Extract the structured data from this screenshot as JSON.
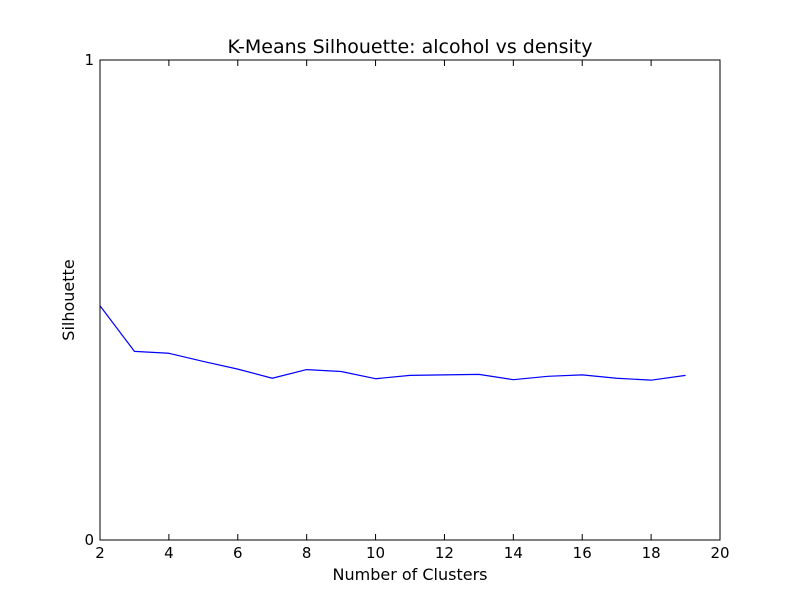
{
  "chart_data": {
    "type": "line",
    "title": "K-Means Silhouette: alcohol vs density",
    "xlabel": "Number of Clusters",
    "ylabel": "Silhouette",
    "xlim": [
      2,
      20
    ],
    "ylim": [
      0,
      1
    ],
    "xticks": [
      "2",
      "4",
      "6",
      "8",
      "10",
      "12",
      "14",
      "16",
      "18",
      "20"
    ],
    "yticks": [
      "0",
      "1"
    ],
    "grid": false,
    "legend": "none",
    "line_color": "#0000ff",
    "series": [
      {
        "x": [
          2,
          3,
          4,
          5,
          6,
          7,
          8,
          9,
          10,
          11,
          12,
          13,
          14,
          15,
          16,
          17,
          18,
          19
        ],
        "values": [
          0.488,
          0.393,
          0.389,
          0.372,
          0.356,
          0.337,
          0.355,
          0.351,
          0.336,
          0.343,
          0.344,
          0.345,
          0.334,
          0.341,
          0.344,
          0.337,
          0.333,
          0.343
        ]
      }
    ]
  }
}
